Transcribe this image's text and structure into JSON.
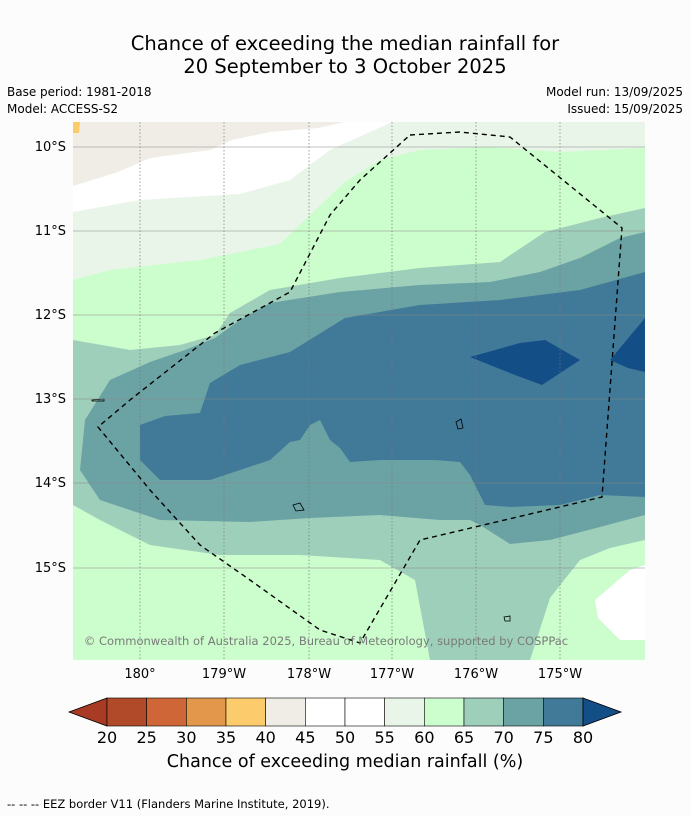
{
  "title": {
    "line1": "Chance of exceeding the median rainfall for",
    "line2": "20 September to 3 October 2025"
  },
  "meta": {
    "base_period": "Base period: 1981-2018",
    "model": "Model: ACCESS-S2",
    "model_run": "Model run: 13/09/2025",
    "issued": "Issued: 15/09/2025"
  },
  "map": {
    "lat_labels": [
      "10°S",
      "11°S",
      "12°S",
      "13°S",
      "14°S",
      "15°S"
    ],
    "lon_labels": [
      "180°",
      "179°W",
      "178°W",
      "177°W",
      "176°W",
      "175°W"
    ],
    "copyright": "© Commonwealth of Australia 2025, Bureau of Meteorology, supported by COSPPac"
  },
  "colorbar": {
    "ticks": [
      "20",
      "25",
      "30",
      "35",
      "40",
      "45",
      "50",
      "55",
      "60",
      "65",
      "70",
      "75",
      "80"
    ],
    "colors": [
      "#a93a25",
      "#b04a28",
      "#cf6637",
      "#e2974a",
      "#fbcb6c",
      "#f0ede6",
      "#ffffff",
      "#ffffff",
      "#e9f5e8",
      "#ccfdcc",
      "#9ecfba",
      "#6ba2a4",
      "#417a99",
      "#134e87"
    ],
    "label": "Chance of exceeding median rainfall (%)"
  },
  "footer": "--  --  -- EEZ border V11 (Flanders Marine Institute, 2019)."
}
